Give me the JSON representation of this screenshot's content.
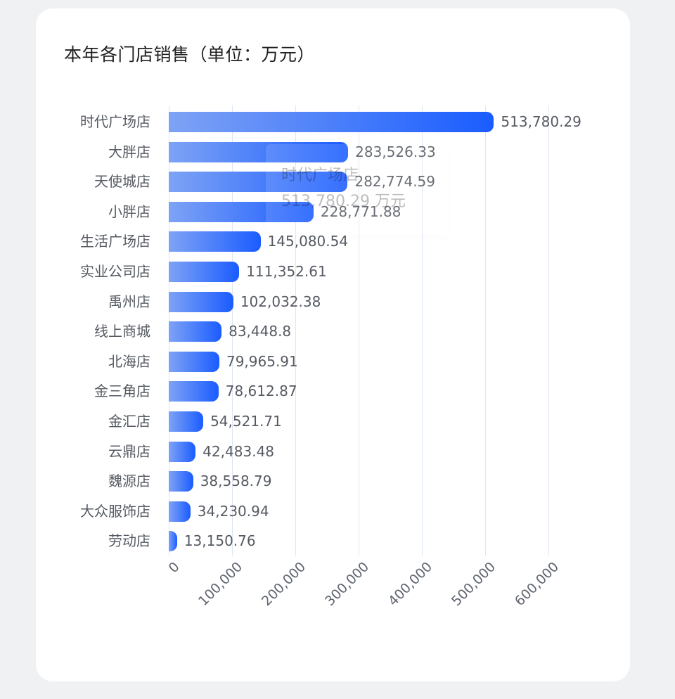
{
  "card": {
    "title": "本年各门店销售（单位：万元）"
  },
  "chart_data": {
    "type": "bar",
    "orientation": "horizontal",
    "title": "本年各门店销售（单位：万元）",
    "xlabel": "",
    "ylabel": "",
    "unit": "万元",
    "xlim": [
      0,
      600000
    ],
    "x_ticks": [
      "0",
      "100,000",
      "200,000",
      "300,000",
      "400,000",
      "500,000",
      "600,000"
    ],
    "grid": true,
    "bar_color_gradient": [
      "#7ea3f5",
      "#1a5cff"
    ],
    "categories": [
      "时代广场店",
      "大胖店",
      "天使城店",
      "小胖店",
      "生活广场店",
      "实业公司店",
      "禹州店",
      "线上商城",
      "北海店",
      "金三角店",
      "金汇店",
      "云鼎店",
      "魏源店",
      "大众服饰店",
      "劳动店"
    ],
    "values": [
      513780.29,
      283526.33,
      282774.59,
      228771.88,
      145080.54,
      111352.61,
      102032.38,
      83448.8,
      79965.91,
      78612.87,
      54521.71,
      42483.48,
      38558.79,
      34230.94,
      13150.76
    ],
    "value_labels": [
      "513,780.29",
      "283,526.33",
      "282,774.59",
      "228,771.88",
      "145,080.54",
      "111,352.61",
      "102,032.38",
      "83,448.8",
      "79,965.91",
      "78,612.87",
      "54,521.71",
      "42,483.48",
      "38,558.79",
      "34,230.94",
      "13,150.76"
    ]
  },
  "tooltip": {
    "name": "时代广场店",
    "value": "513,780.29 万元"
  }
}
